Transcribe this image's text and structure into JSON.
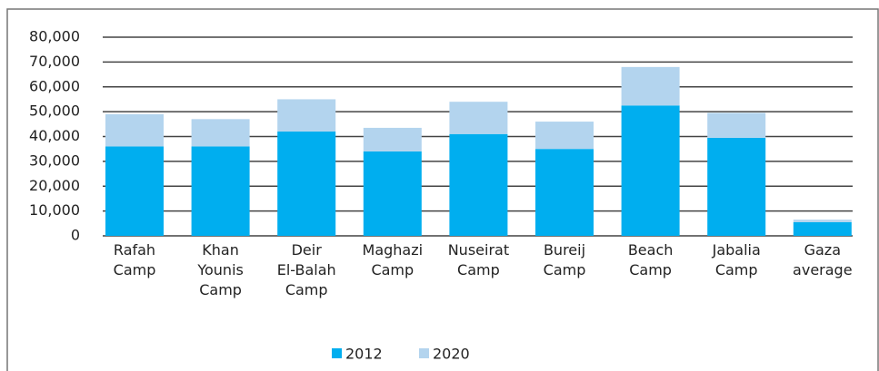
{
  "chart_data": {
    "type": "stacked_bar",
    "categories": [
      [
        "Rafah",
        "Camp"
      ],
      [
        "Khan",
        "Younis",
        "Camp"
      ],
      [
        "Deir",
        "El-Balah",
        "Camp"
      ],
      [
        "Maghazi",
        "Camp"
      ],
      [
        "Nuseirat",
        "Camp"
      ],
      [
        "Bureij",
        "Camp"
      ],
      [
        "Beach",
        "Camp"
      ],
      [
        "Jabalia",
        "Camp"
      ],
      [
        "Gaza",
        "average"
      ]
    ],
    "series": [
      {
        "name": "2012",
        "color": "#00aeef",
        "values": [
          36000,
          36000,
          42000,
          34000,
          41000,
          35000,
          52500,
          39500,
          5500
        ]
      },
      {
        "name": "2020",
        "color": "#b3d4ee",
        "values": [
          13000,
          11000,
          13000,
          9500,
          13000,
          11000,
          15500,
          10000,
          1000
        ]
      }
    ],
    "ylim": [
      0,
      80000
    ],
    "yticks": [
      0,
      {
        "value": 10000,
        "label": "10,000"
      },
      {
        "value": 20000,
        "label": "20,000"
      },
      {
        "value": 30000,
        "label": "30,000"
      },
      {
        "value": 40000,
        "label": "40,000"
      },
      {
        "value": 50000,
        "label": "50,000"
      },
      {
        "value": 60000,
        "label": "60,000"
      },
      {
        "value": 70000,
        "label": "70,000"
      },
      {
        "value": 80000,
        "label": "80,000"
      }
    ],
    "grid": true,
    "legend": "bottom"
  }
}
